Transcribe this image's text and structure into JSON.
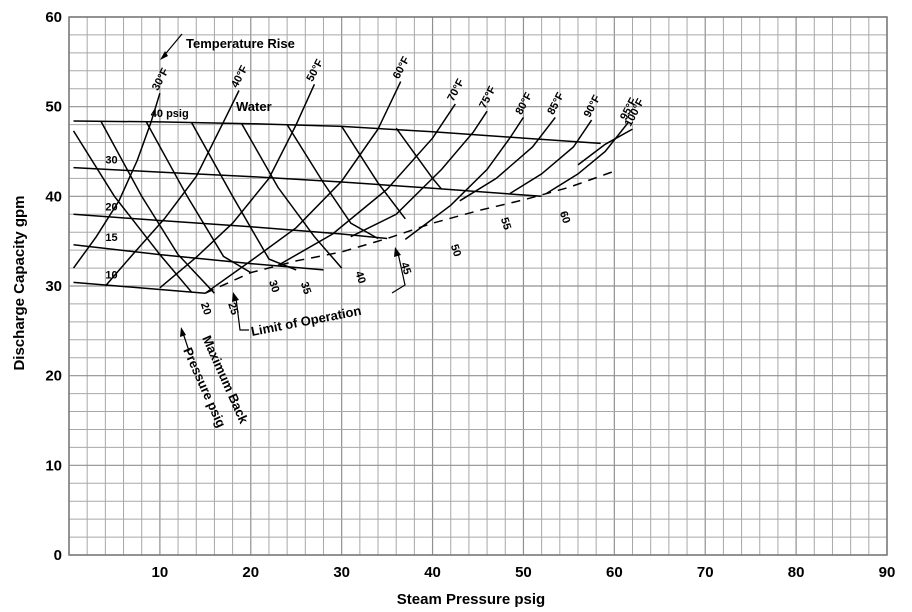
{
  "chart_data": {
    "type": "line",
    "title": "",
    "xlabel": "Steam Pressure psig",
    "ylabel": "Discharge Capacity gpm",
    "xlim": [
      0,
      90
    ],
    "ylim": [
      0,
      60
    ],
    "x_ticks": [
      "10",
      "20",
      "30",
      "40",
      "50",
      "60",
      "70",
      "80",
      "90"
    ],
    "y_ticks": [
      "0",
      "10",
      "20",
      "30",
      "40",
      "50",
      "60"
    ],
    "grid": true,
    "water_pressure_curves": [
      {
        "name": "10",
        "points": [
          [
            0.5,
            30.4
          ],
          [
            15,
            29.2
          ]
        ]
      },
      {
        "name": "15",
        "points": [
          [
            0.5,
            34.6
          ],
          [
            10,
            33.5
          ],
          [
            20,
            32.5
          ],
          [
            28,
            31.8
          ]
        ]
      },
      {
        "name": "20",
        "points": [
          [
            0.5,
            38.0
          ],
          [
            10,
            37.3
          ],
          [
            20,
            36.6
          ],
          [
            30,
            35.8
          ],
          [
            35,
            35.3
          ]
        ]
      },
      {
        "name": "30",
        "points": [
          [
            0.5,
            43.2
          ],
          [
            10,
            42.7
          ],
          [
            20,
            42.2
          ],
          [
            30,
            41.6
          ],
          [
            40,
            40.9
          ],
          [
            52,
            40.0
          ]
        ]
      },
      {
        "name": "40 psig",
        "points": [
          [
            0.5,
            48.4
          ],
          [
            10,
            48.3
          ],
          [
            20,
            48.1
          ],
          [
            30,
            47.8
          ],
          [
            40,
            47.2
          ],
          [
            50,
            46.5
          ],
          [
            58.5,
            45.9
          ]
        ]
      }
    ],
    "temperature_rise_curves": [
      {
        "name": "30°F",
        "points": [
          [
            0.5,
            32.0
          ],
          [
            3,
            35.5
          ],
          [
            5.5,
            39.5
          ],
          [
            7.5,
            44
          ],
          [
            9,
            48.2
          ],
          [
            10,
            51.5
          ]
        ]
      },
      {
        "name": "40°F",
        "points": [
          [
            4,
            30.0
          ],
          [
            7,
            33.5
          ],
          [
            10.5,
            37.5
          ],
          [
            14,
            42.2
          ],
          [
            17,
            48.3
          ],
          [
            18.7,
            51.8
          ]
        ]
      },
      {
        "name": "50°F",
        "points": [
          [
            10,
            29.8
          ],
          [
            14,
            33.2
          ],
          [
            18,
            37
          ],
          [
            22,
            42
          ],
          [
            25,
            48
          ],
          [
            27,
            52.5
          ]
        ]
      },
      {
        "name": "60°F",
        "points": [
          [
            15,
            29.2
          ],
          [
            20,
            32.8
          ],
          [
            25,
            36.5
          ],
          [
            30,
            41.7
          ],
          [
            34,
            47.5
          ],
          [
            36.5,
            52.8
          ]
        ]
      },
      {
        "name": "70°F",
        "points": [
          [
            23,
            32.3
          ],
          [
            29,
            35.8
          ],
          [
            35,
            40.8
          ],
          [
            40,
            46.5
          ],
          [
            42.5,
            50.3
          ]
        ]
      },
      {
        "name": "75°F",
        "points": [
          [
            31,
            35.5
          ],
          [
            36,
            38
          ],
          [
            41,
            43
          ],
          [
            44.5,
            47.2
          ],
          [
            46,
            49.5
          ]
        ]
      },
      {
        "name": "80°F",
        "points": [
          [
            37,
            35.2
          ],
          [
            42,
            39
          ],
          [
            46,
            43
          ],
          [
            48.5,
            46.5
          ],
          [
            50,
            48.8
          ]
        ]
      },
      {
        "name": "85°F",
        "points": [
          [
            43,
            39.5
          ],
          [
            47,
            42
          ],
          [
            51,
            45.5
          ],
          [
            53.5,
            48.8
          ]
        ]
      },
      {
        "name": "90°F",
        "points": [
          [
            48.5,
            40.3
          ],
          [
            52,
            42.5
          ],
          [
            55.5,
            45.5
          ],
          [
            57.5,
            48.5
          ]
        ]
      },
      {
        "name": "95°F",
        "points": [
          [
            52.5,
            40.3
          ],
          [
            56,
            42.5
          ],
          [
            59,
            45
          ],
          [
            61.5,
            48.2
          ]
        ]
      },
      {
        "name": "100°F",
        "points": [
          [
            56,
            43.5
          ],
          [
            59,
            45.8
          ],
          [
            62,
            47.5
          ]
        ]
      }
    ],
    "x_pattern_lines": [
      {
        "points": [
          [
            0.5,
            47.3
          ],
          [
            5,
            40
          ],
          [
            10,
            33.5
          ],
          [
            13.5,
            29.3
          ]
        ]
      },
      {
        "points": [
          [
            3.5,
            48.4
          ],
          [
            8,
            40
          ],
          [
            12,
            33.5
          ],
          [
            16,
            29.2
          ]
        ]
      },
      {
        "points": [
          [
            8.5,
            48.3
          ],
          [
            13,
            40
          ],
          [
            17,
            33.3
          ],
          [
            20,
            31.5
          ]
        ]
      },
      {
        "points": [
          [
            13.5,
            48.2
          ],
          [
            18,
            40
          ],
          [
            22,
            33
          ],
          [
            25,
            31.8
          ]
        ]
      },
      {
        "points": [
          [
            19,
            48.1
          ],
          [
            23,
            41
          ],
          [
            27,
            35.5
          ],
          [
            30,
            32
          ]
        ]
      },
      {
        "points": [
          [
            24,
            48.0
          ],
          [
            28,
            41.5
          ],
          [
            31,
            37
          ],
          [
            34,
            35.3
          ]
        ]
      },
      {
        "points": [
          [
            30,
            47.8
          ],
          [
            34,
            41.5
          ],
          [
            37,
            37.5
          ]
        ]
      },
      {
        "points": [
          [
            36,
            47.6
          ],
          [
            40,
            42
          ],
          [
            41,
            40.8
          ]
        ]
      }
    ],
    "back_pressure_labels": [
      {
        "text": "20",
        "x": 14.5,
        "y": 28
      },
      {
        "text": "25",
        "x": 17.5,
        "y": 28
      },
      {
        "text": "30",
        "x": 22,
        "y": 30.5
      },
      {
        "text": "35",
        "x": 25.5,
        "y": 30.3
      },
      {
        "text": "40",
        "x": 31.5,
        "y": 31.5
      },
      {
        "text": "45",
        "x": 36.5,
        "y": 32.5
      },
      {
        "text": "50",
        "x": 42,
        "y": 34.5
      },
      {
        "text": "55",
        "x": 47.5,
        "y": 37.5
      },
      {
        "text": "60",
        "x": 54,
        "y": 38.2
      }
    ],
    "limit_of_operation": {
      "points": [
        [
          15,
          29.2
        ],
        [
          20,
          31.5
        ],
        [
          25,
          32.8
        ],
        [
          30,
          33.8
        ],
        [
          35,
          35.3
        ],
        [
          40,
          37.0
        ],
        [
          45,
          38.4
        ],
        [
          50,
          39.6
        ],
        [
          55,
          41.0
        ],
        [
          60,
          42.8
        ]
      ]
    },
    "annotations": {
      "temperature_rise": "Temperature Rise",
      "water": "Water",
      "limit_of_operation": "Limit of Operation",
      "max_back_pressure_line1": "Maximum Back",
      "max_back_pressure_line2": "Pressure psig"
    }
  }
}
